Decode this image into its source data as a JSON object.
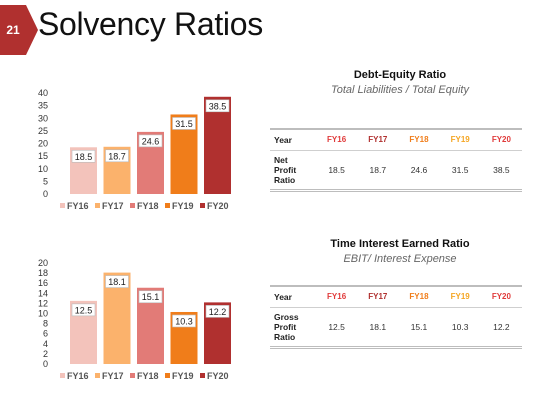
{
  "slide": {
    "number": "21",
    "title": "Solvency Ratios",
    "badge_color": "#b0302f"
  },
  "colors": [
    "#f3c3bb",
    "#fbb26c",
    "#e27b77",
    "#f07d1a",
    "#b0302f"
  ],
  "header_colors": [
    "#e03a3a",
    "#b0302f",
    "#f07d1a",
    "#f5a623",
    "#e03a3a"
  ],
  "panels": [
    {
      "title": "Debt-Equity Ratio",
      "subtitle": "Total Liabilities / Total Equity",
      "table": {
        "col_label": "Year",
        "headers": [
          "FY16",
          "FY17",
          "FY18",
          "FY19",
          "FY20"
        ],
        "row_label_lines": [
          "Net",
          "Profit",
          "Ratio"
        ],
        "values": [
          "18.5",
          "18.7",
          "24.6",
          "31.5",
          "38.5"
        ]
      }
    },
    {
      "title": "Time Interest Earned Ratio",
      "subtitle": "EBIT/ Interest Expense",
      "table": {
        "col_label": "Year",
        "headers": [
          "FY16",
          "FY17",
          "FY18",
          "FY19",
          "FY20"
        ],
        "row_label_lines": [
          "Gross",
          "Profit",
          "Ratio"
        ],
        "values": [
          "12.5",
          "18.1",
          "15.1",
          "10.3",
          "12.2"
        ]
      }
    }
  ],
  "chart_data": [
    {
      "type": "bar",
      "categories": [
        "FY16",
        "FY17",
        "FY18",
        "FY19",
        "FY20"
      ],
      "values": [
        18.5,
        18.7,
        24.6,
        31.5,
        38.5
      ],
      "ylim": [
        0,
        40
      ],
      "yticks": [
        "0",
        "5",
        "10",
        "15",
        "20",
        "25",
        "30",
        "35",
        "40"
      ],
      "legend": [
        "FY16",
        "FY17",
        "FY18",
        "FY19",
        "FY20"
      ],
      "legend_position": "bottom",
      "grid": false
    },
    {
      "type": "bar",
      "categories": [
        "FY16",
        "FY17",
        "FY18",
        "FY19",
        "FY20"
      ],
      "values": [
        12.5,
        18.1,
        15.1,
        10.3,
        12.2
      ],
      "ylim": [
        0,
        20
      ],
      "yticks": [
        "0",
        "2",
        "4",
        "6",
        "8",
        "10",
        "12",
        "14",
        "16",
        "18",
        "20"
      ],
      "legend": [
        "FY16",
        "FY17",
        "FY18",
        "FY19",
        "FY20"
      ],
      "legend_position": "bottom",
      "grid": false
    }
  ]
}
